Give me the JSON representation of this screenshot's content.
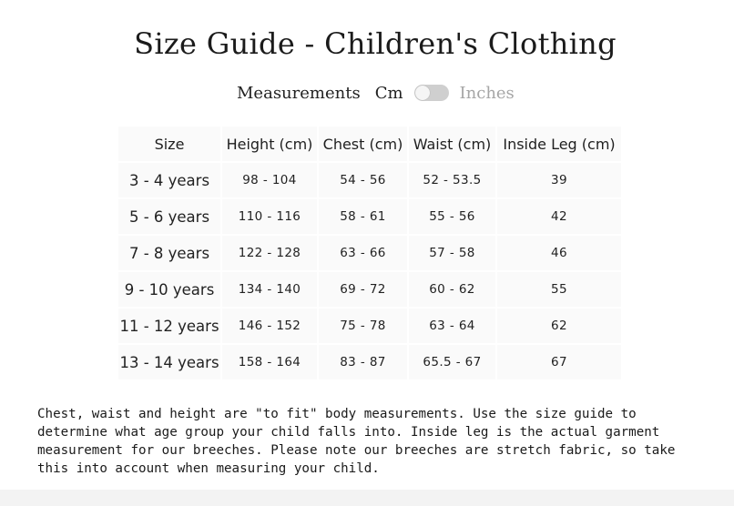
{
  "title": "Size Guide - Children's Clothing",
  "units": {
    "label": "Measurements",
    "option_cm": "Cm",
    "option_inches": "Inches",
    "toggle_on": false
  },
  "table": {
    "headers": [
      "Size",
      "Height (cm)",
      "Chest (cm)",
      "Waist (cm)",
      "Inside Leg (cm)"
    ],
    "rows": [
      [
        "3 - 4 years",
        "98 - 104",
        "54 - 56",
        "52 - 53.5",
        "39"
      ],
      [
        "5 - 6 years",
        "110 - 116",
        "58 - 61",
        "55 - 56",
        "42"
      ],
      [
        "7 - 8 years",
        "122 - 128",
        "63 - 66",
        "57 - 58",
        "46"
      ],
      [
        "9 - 10 years",
        "134 - 140",
        "69 - 72",
        "60 - 62",
        "55"
      ],
      [
        "11 - 12 years",
        "146 - 152",
        "75 - 78",
        "63 - 64",
        "62"
      ],
      [
        "13 - 14 years",
        "158 - 164",
        "83 - 87",
        "65.5 - 67",
        "67"
      ]
    ]
  },
  "note": "Chest, waist and height are \"to fit\" body measurements. Use the size guide to determine what age group your child falls into. Inside leg is the actual garment measurement for our breeches. Please note our breeches are stretch fabric, so take this into account when measuring your child.",
  "colors": {
    "background": "#ffffff",
    "cell_background": "#fafafa",
    "toggle_track": "#cfcfcf",
    "inactive_option": "#a6a6a6"
  }
}
